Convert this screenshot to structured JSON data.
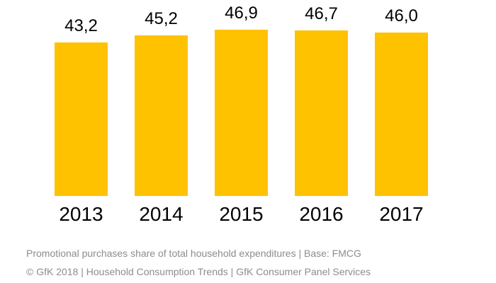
{
  "chart_data": {
    "type": "bar",
    "title": "",
    "categories": [
      "2013",
      "2014",
      "2015",
      "2016",
      "2017"
    ],
    "values": [
      43.2,
      45.2,
      46.9,
      46.7,
      46.0
    ],
    "value_labels": [
      "43,2",
      "45,2",
      "46,9",
      "46,7",
      "46,0"
    ],
    "xlabel": "",
    "ylabel": "",
    "ylim": [
      0,
      55
    ],
    "grid": false,
    "legend": "none",
    "bar_color": "#FFC200"
  },
  "footer": {
    "line1": "Promotional purchases share of total household expenditures | Base: FMCG",
    "line2": "© GfK 2018 | Household Consumption Trends | GfK Consumer Panel Services"
  },
  "colors": {
    "bar": "#FFC200",
    "label_text": "#000000",
    "footer_text": "#8C8C8C",
    "background": "#FFFFFF"
  }
}
